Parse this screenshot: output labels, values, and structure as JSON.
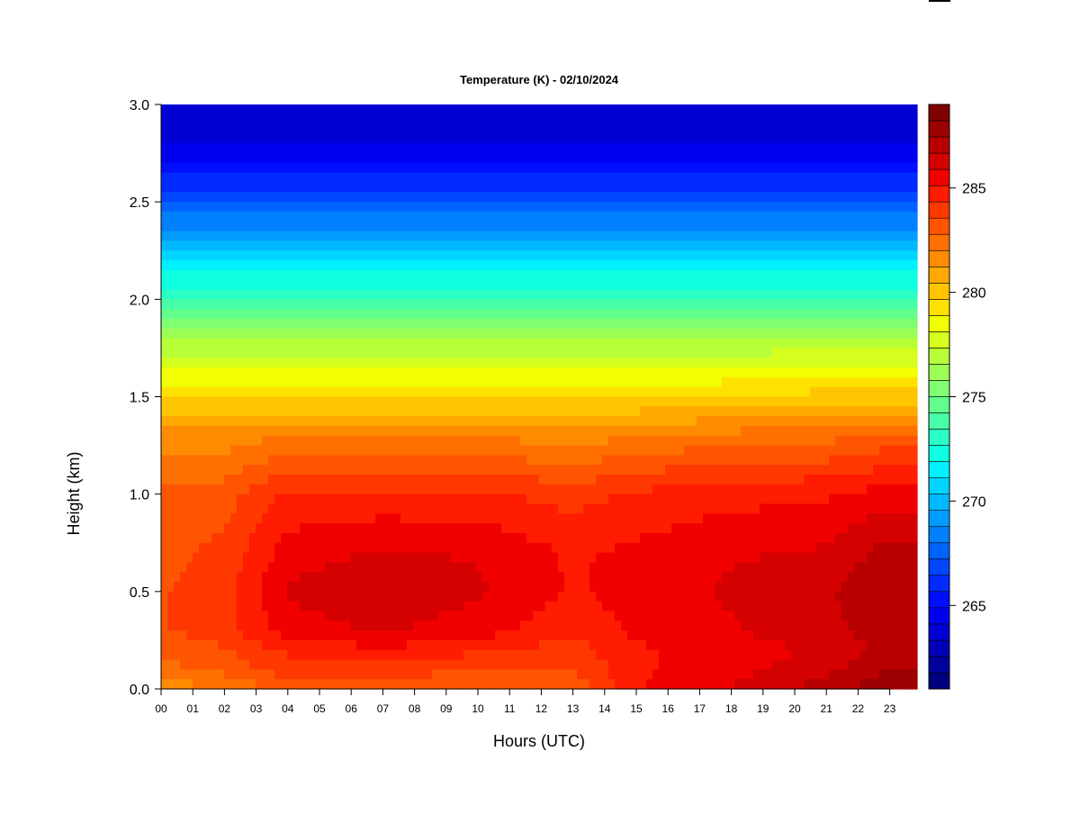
{
  "chart_data": {
    "type": "heatmap",
    "title": "Temperature (K) - 02/10/2024",
    "xlabel": "Hours (UTC)",
    "ylabel": "Height (km)",
    "x_ticks": [
      "00",
      "01",
      "02",
      "03",
      "04",
      "05",
      "06",
      "07",
      "08",
      "09",
      "10",
      "11",
      "12",
      "13",
      "14",
      "15",
      "16",
      "17",
      "18",
      "19",
      "20",
      "21",
      "22",
      "23"
    ],
    "xlim": [
      0,
      23.9
    ],
    "y_ticks": [
      "0.0",
      "0.5",
      "1.0",
      "1.5",
      "2.0",
      "2.5",
      "3.0"
    ],
    "ylim": [
      0,
      3
    ],
    "colorbar": {
      "min": 261,
      "max": 289,
      "step": 1,
      "tick_labels": [
        "265",
        "270",
        "275",
        "280",
        "285"
      ],
      "tick_values": [
        265,
        270,
        275,
        280,
        285
      ],
      "colors": [
        "#00007f",
        "#00009c",
        "#0000b8",
        "#0000d5",
        "#0000f1",
        "#000eff",
        "#002aff",
        "#0047ff",
        "#0063ff",
        "#0080ff",
        "#009cff",
        "#00b8ff",
        "#00d5ff",
        "#00f1ff",
        "#0effe1",
        "#2affc5",
        "#47ffa8",
        "#63ff8c",
        "#80ff70",
        "#9cff55",
        "#b8ff38",
        "#d5ff1c",
        "#f1ff00",
        "#ffe100",
        "#ffc500",
        "#ffa800",
        "#ff8c00",
        "#ff7000",
        "#ff5500",
        "#ff3800",
        "#ff1c00",
        "#f10000",
        "#d50000",
        "#b80000",
        "#9c0000",
        "#7f0000"
      ]
    },
    "profile_height_km": [
      0.0,
      0.1,
      0.2,
      0.3,
      0.5,
      0.7,
      1.0,
      1.3,
      1.5,
      1.8,
      2.0,
      2.2,
      2.5,
      2.8,
      3.0
    ],
    "profile_temperature_K_by_hour": [
      {
        "hour": 0,
        "values": [
          281.5,
          282.5,
          283.0,
          283.5,
          283.5,
          283.3,
          283.0,
          281.5,
          279.5,
          276.5,
          273.5,
          271.0,
          267.0,
          264.0,
          263.5
        ]
      },
      {
        "hour": 2,
        "values": [
          282.0,
          283.0,
          283.5,
          284.0,
          284.0,
          283.8,
          283.2,
          281.5,
          279.5,
          276.5,
          273.5,
          271.0,
          267.0,
          264.0,
          263.5
        ]
      },
      {
        "hour": 4,
        "values": [
          283.0,
          284.0,
          284.5,
          285.5,
          286.0,
          285.5,
          284.5,
          282.0,
          279.5,
          276.5,
          273.5,
          271.0,
          267.0,
          264.0,
          263.5
        ]
      },
      {
        "hour": 7,
        "values": [
          283.0,
          284.0,
          285.0,
          286.0,
          286.5,
          286.0,
          284.5,
          282.0,
          279.5,
          276.5,
          273.5,
          271.0,
          267.0,
          264.0,
          263.5
        ]
      },
      {
        "hour": 10,
        "values": [
          283.0,
          283.5,
          284.5,
          285.5,
          286.0,
          285.8,
          284.5,
          282.0,
          279.5,
          276.5,
          273.5,
          271.0,
          267.0,
          264.0,
          263.5
        ]
      },
      {
        "hour": 13,
        "values": [
          283.0,
          283.5,
          284.0,
          284.5,
          285.0,
          285.0,
          284.0,
          281.5,
          279.5,
          276.5,
          273.5,
          271.0,
          267.0,
          264.0,
          263.5
        ]
      },
      {
        "hour": 15,
        "values": [
          285.0,
          285.0,
          285.0,
          285.3,
          285.5,
          285.3,
          284.5,
          282.0,
          279.5,
          276.5,
          273.5,
          271.0,
          267.0,
          264.0,
          263.5
        ]
      },
      {
        "hour": 18,
        "values": [
          286.0,
          285.5,
          285.5,
          285.8,
          286.0,
          285.8,
          284.8,
          282.3,
          279.7,
          276.5,
          273.5,
          271.0,
          267.0,
          264.0,
          263.5
        ]
      },
      {
        "hour": 21,
        "values": [
          287.0,
          286.5,
          286.0,
          286.5,
          286.5,
          286.0,
          285.0,
          282.5,
          280.0,
          276.5,
          273.5,
          271.0,
          267.0,
          264.0,
          263.5
        ]
      },
      {
        "hour": 23,
        "values": [
          288.0,
          287.5,
          287.0,
          287.0,
          287.5,
          287.0,
          285.5,
          283.0,
          280.0,
          276.5,
          273.5,
          271.0,
          267.0,
          264.0,
          263.5
        ]
      }
    ]
  }
}
